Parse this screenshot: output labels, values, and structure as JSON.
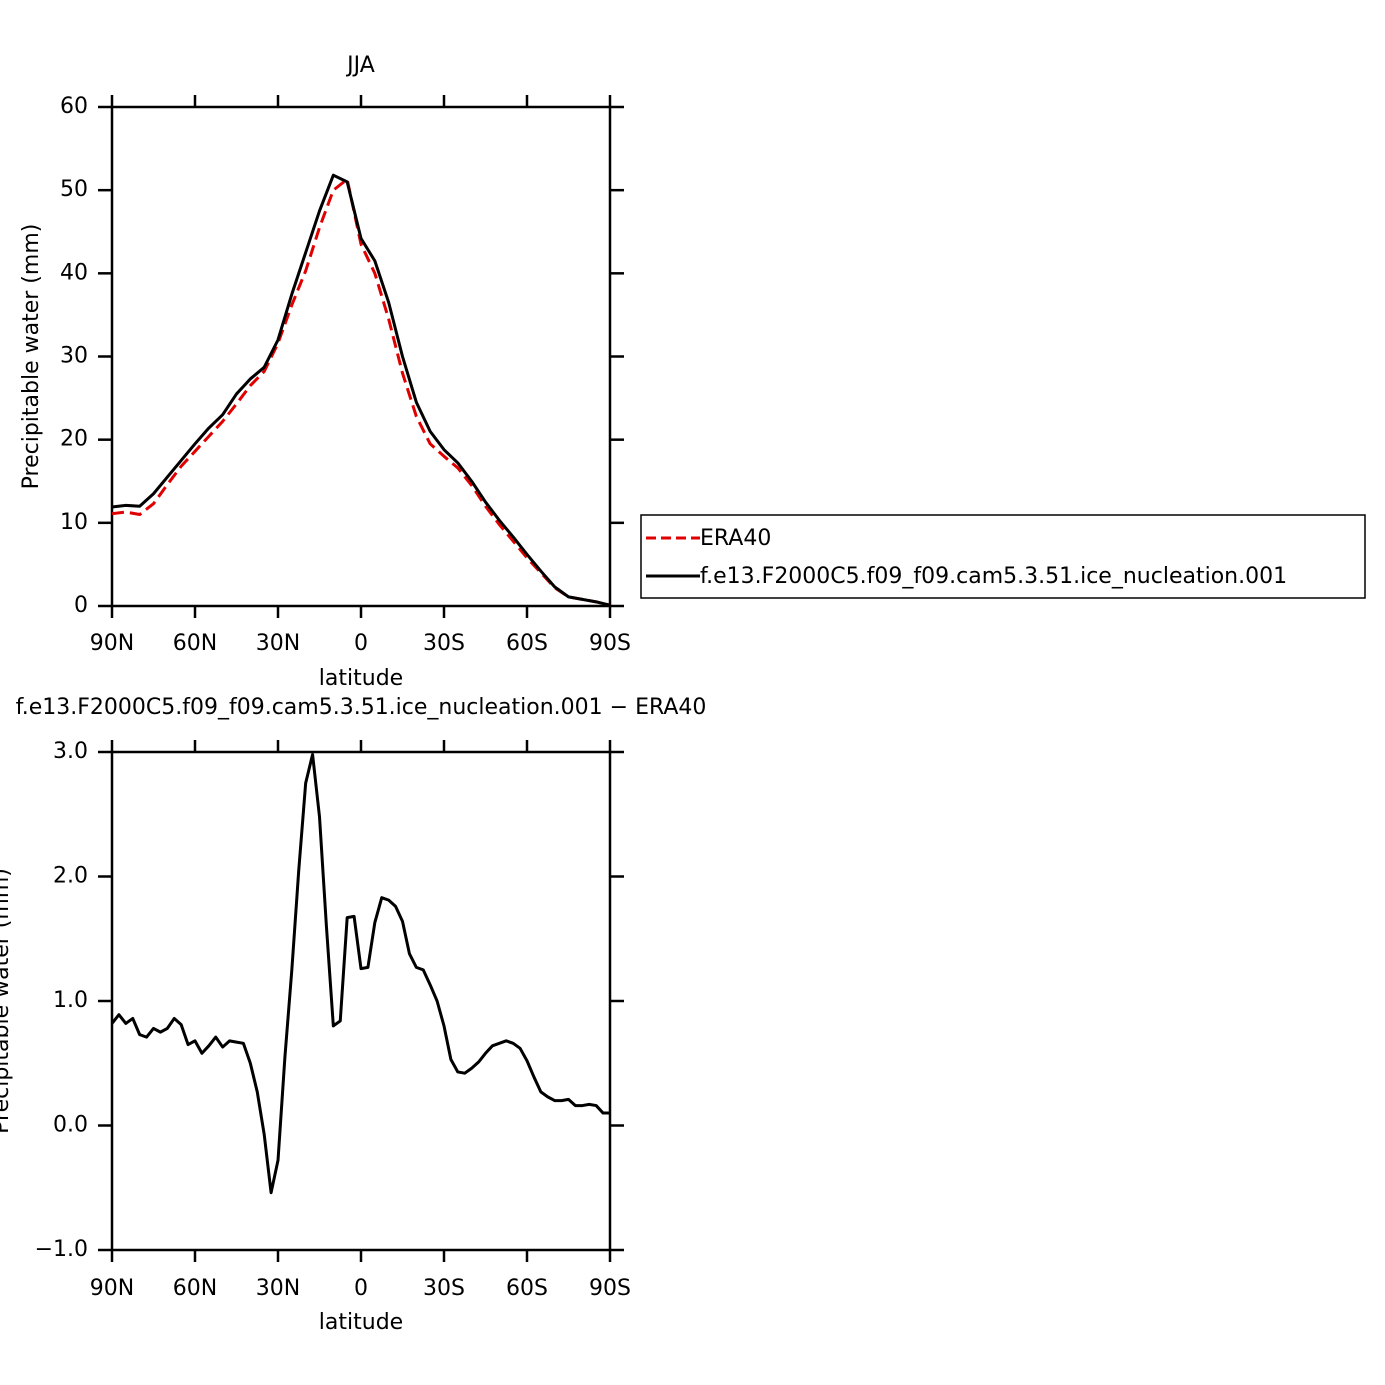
{
  "chart_data": [
    {
      "type": "line",
      "title": "JJA",
      "x_label": "latitude",
      "y_label": "Precipitable water (mm)",
      "x": [
        90,
        85,
        80,
        75,
        70,
        65,
        60,
        55,
        50,
        45,
        40,
        35,
        30,
        25,
        20,
        15,
        10,
        5,
        0,
        -5,
        -10,
        -15,
        -20,
        -25,
        -30,
        -35,
        -40,
        -45,
        -50,
        -55,
        -60,
        -65,
        -70,
        -75,
        -80,
        -85,
        -90
      ],
      "series": [
        {
          "name": "ERA40",
          "color": "#e00000",
          "dashed": true,
          "values": [
            11.1,
            11.3,
            11.0,
            12.3,
            14.6,
            16.8,
            18.6,
            20.4,
            22.2,
            24.3,
            26.5,
            28.2,
            31.6,
            36.2,
            40.3,
            45.5,
            50.0,
            51.3,
            43.5,
            40.0,
            34.5,
            28.0,
            22.8,
            19.5,
            18.0,
            16.6,
            14.5,
            12.0,
            9.8,
            7.8,
            5.8,
            4.0,
            2.2,
            1.1,
            0.8,
            0.5,
            0.1
          ]
        },
        {
          "name": "f.e13.F2000C5.f09_f09.cam5.3.51.ice_nucleation.001",
          "color": "#000000",
          "dashed": false,
          "values": [
            11.9,
            12.1,
            12.0,
            13.5,
            15.5,
            17.5,
            19.5,
            21.4,
            23.0,
            25.5,
            27.3,
            28.7,
            32.0,
            37.5,
            42.5,
            47.5,
            51.8,
            51.0,
            44.2,
            41.5,
            36.5,
            30.0,
            24.5,
            21.0,
            18.8,
            17.2,
            15.0,
            12.5,
            10.3,
            8.3,
            6.2,
            4.2,
            2.3,
            1.1,
            0.8,
            0.5,
            0.1
          ]
        }
      ],
      "xlim": [
        90,
        -90
      ],
      "xticks": [
        {
          "value": 90,
          "label": "90N"
        },
        {
          "value": 60,
          "label": "60N"
        },
        {
          "value": 30,
          "label": "30N"
        },
        0,
        {
          "value": -30,
          "label": "30S"
        },
        {
          "value": -60,
          "label": "60S"
        },
        {
          "value": -90,
          "label": "90S"
        }
      ],
      "ylim": [
        0,
        60
      ],
      "yticks": [
        0,
        10,
        20,
        30,
        40,
        50,
        60
      ],
      "legend": "outside-right"
    },
    {
      "type": "line",
      "title": "f.e13.F2000C5.f09_f09.cam5.3.51.ice_nucleation.001 − ERA40",
      "x_label": "latitude",
      "y_label": "Precipitable water (mm)",
      "x": [
        90,
        87.5,
        85,
        82.5,
        80,
        77.5,
        75,
        72.5,
        70,
        67.5,
        65,
        62.5,
        60,
        57.5,
        55,
        52.5,
        50,
        47.5,
        45,
        42.5,
        40,
        37.5,
        35,
        32.5,
        30,
        27.5,
        25,
        22.5,
        20,
        17.5,
        15,
        12.5,
        10,
        7.5,
        5,
        2.5,
        0,
        -2.5,
        -5,
        -7.5,
        -10,
        -12.5,
        -15,
        -17.5,
        -20,
        -22.5,
        -25,
        -27.5,
        -30,
        -32.5,
        -35,
        -37.5,
        -40,
        -42.5,
        -45,
        -47.5,
        -50,
        -52.5,
        -55,
        -57.5,
        -60,
        -62.5,
        -65,
        -67.5,
        -70,
        -72.5,
        -75,
        -77.5,
        -80,
        -82.5,
        -85,
        -87.5,
        -90
      ],
      "color": "#000000",
      "values": [
        0.82,
        0.89,
        0.82,
        0.86,
        0.73,
        0.71,
        0.78,
        0.75,
        0.78,
        0.86,
        0.81,
        0.65,
        0.68,
        0.58,
        0.64,
        0.71,
        0.63,
        0.68,
        0.67,
        0.66,
        0.5,
        0.27,
        -0.07,
        -0.54,
        -0.28,
        0.55,
        1.25,
        2.05,
        2.75,
        2.98,
        2.48,
        1.6,
        0.8,
        0.84,
        1.67,
        1.68,
        1.26,
        1.27,
        1.63,
        1.83,
        1.81,
        1.76,
        1.64,
        1.38,
        1.27,
        1.25,
        1.13,
        1.0,
        0.8,
        0.53,
        0.43,
        0.42,
        0.46,
        0.51,
        0.58,
        0.64,
        0.66,
        0.68,
        0.66,
        0.62,
        0.52,
        0.39,
        0.27,
        0.23,
        0.2,
        0.2,
        0.21,
        0.16,
        0.16,
        0.17,
        0.16,
        0.1,
        0.1
      ],
      "xlim": [
        90,
        -90
      ],
      "xticks": [
        {
          "value": 90,
          "label": "90N"
        },
        {
          "value": 60,
          "label": "60N"
        },
        {
          "value": 30,
          "label": "30N"
        },
        0,
        {
          "value": -30,
          "label": "30S"
        },
        {
          "value": -60,
          "label": "60S"
        },
        {
          "value": -90,
          "label": "90S"
        }
      ],
      "ylim": [
        -1,
        3
      ],
      "yticks": [
        {
          "value": -1,
          "label": "−1.0"
        },
        {
          "value": 0,
          "label": "0.0"
        },
        {
          "value": 1,
          "label": "1.0"
        },
        {
          "value": 2,
          "label": "2.0"
        },
        {
          "value": 3,
          "label": "3.0"
        }
      ]
    }
  ]
}
